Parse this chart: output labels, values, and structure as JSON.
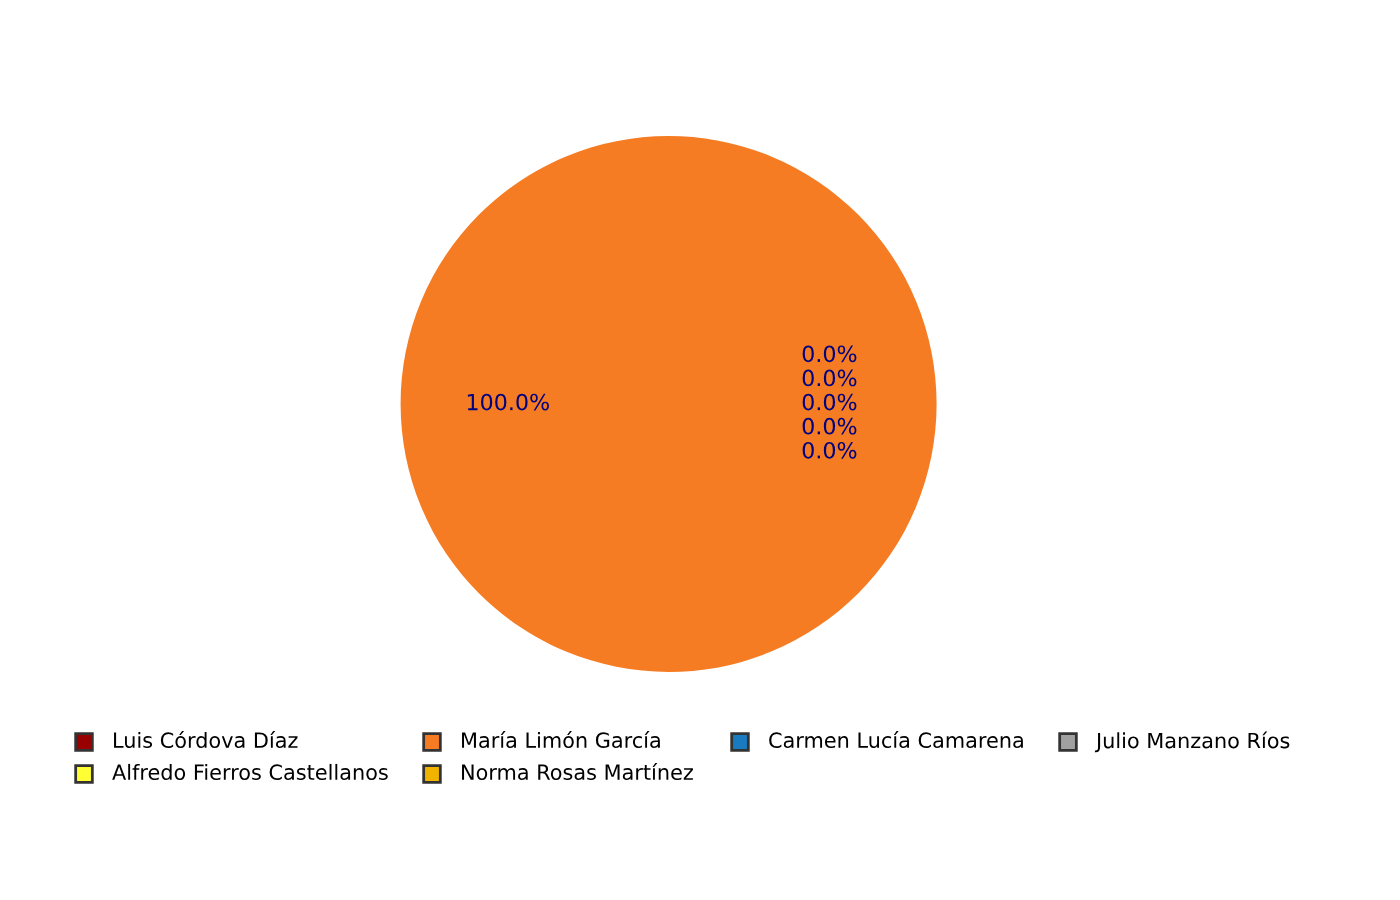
{
  "chart_data": {
    "type": "pie",
    "categories": [
      "Luis Córdova Díaz",
      "María Limón García",
      "Carmen Lucía Camarena",
      "Julio Manzano Ríos",
      "Alfredo Fierros Castellanos",
      "Norma Rosas Martínez"
    ],
    "values": [
      0,
      100,
      0,
      0,
      0,
      0
    ],
    "colors": [
      "#990000",
      "#f57c22",
      "#1a7abf",
      "#a0a0a0",
      "#ffff33",
      "#f0b400"
    ],
    "value_labels": [
      "0.0%",
      "100.0%",
      "0.0%",
      "0.0%",
      "0.0%",
      "0.0%"
    ],
    "legend": "bottom"
  }
}
